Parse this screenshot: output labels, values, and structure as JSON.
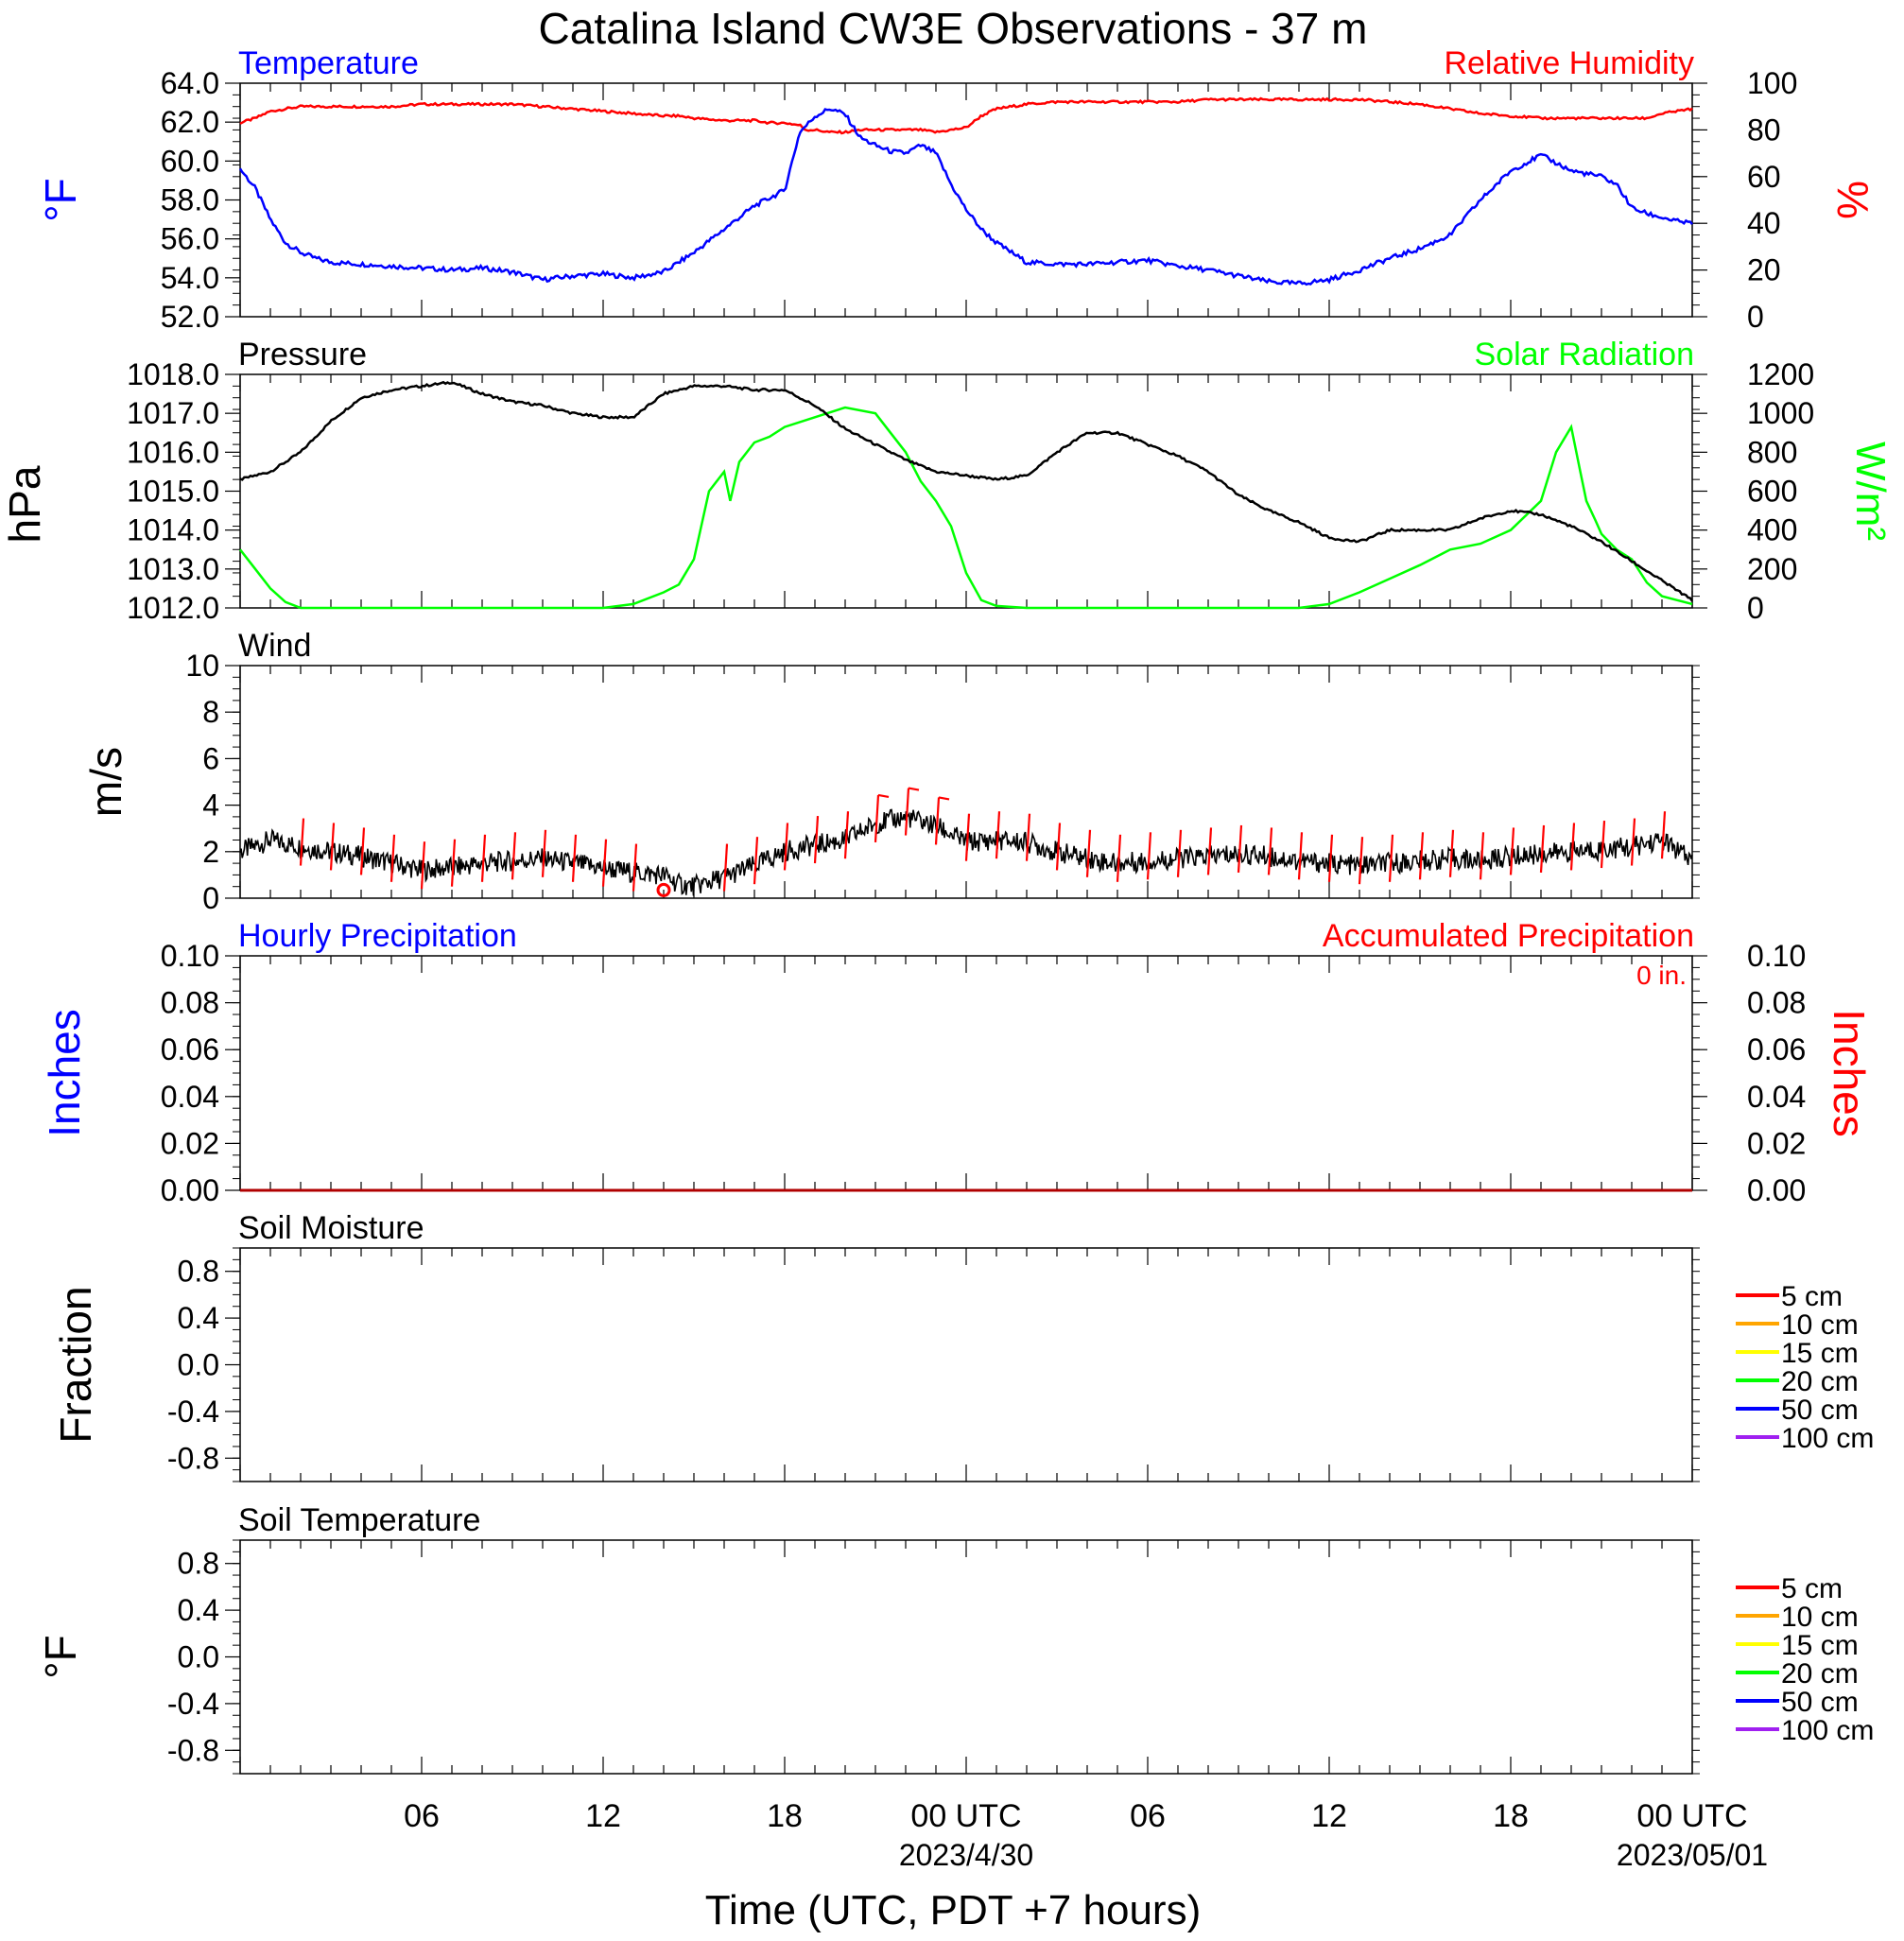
{
  "title": "Catalina Island CW3E Observations - 37 m",
  "x_axis": {
    "label": "Time (UTC, PDT +7 hours)",
    "ticks": [
      "06",
      "12",
      "18",
      "00 UTC",
      "06",
      "12",
      "18",
      "00 UTC"
    ],
    "dates": [
      "2023/4/30",
      "2023/05/01"
    ]
  },
  "colors": {
    "temperature": "#0000ff",
    "humidity": "#ff0000",
    "pressure": "#000000",
    "solar": "#00ff00",
    "wind": "#000000",
    "barbs": "#ff0000",
    "soil_depths": [
      "#ff0000",
      "#ffa500",
      "#ffff00",
      "#00ff00",
      "#0000ff",
      "#a020f0"
    ]
  },
  "chart_data": [
    {
      "type": "line",
      "title_left": "Temperature",
      "title_right": "Relative Humidity",
      "ylabel_left": "°F",
      "ylabel_right": "%",
      "ylim_left": [
        52,
        64
      ],
      "ylim_right": [
        0,
        100
      ],
      "yticks_left": [
        "64.0",
        "62.0",
        "60.0",
        "58.0",
        "56.0",
        "54.0",
        "52.0"
      ],
      "yticks_right": [
        "100",
        "80",
        "60",
        "40",
        "20",
        "0"
      ],
      "x_hours": [
        0,
        0.5,
        1,
        1.5,
        2,
        2.5,
        3,
        4,
        5,
        6,
        7,
        8,
        9,
        10,
        11,
        12,
        13,
        14,
        14.5,
        15,
        16,
        17,
        17.5,
        18,
        18.5,
        18.7,
        19,
        19.5,
        20,
        20.5,
        21,
        21.5,
        22,
        22.5,
        23,
        23.5,
        24,
        24.5,
        25,
        26,
        27,
        28,
        29,
        30,
        31,
        32,
        33,
        34,
        35,
        36,
        37,
        38,
        39,
        40,
        41,
        42,
        43,
        44,
        45,
        45.5,
        46,
        46.5,
        47,
        47.5,
        48
      ],
      "series": [
        {
          "name": "Temperature",
          "axis": "left",
          "values": [
            59.6,
            58.6,
            57.0,
            55.8,
            55.3,
            55.0,
            54.8,
            54.7,
            54.6,
            54.5,
            54.4,
            54.5,
            54.3,
            53.9,
            54.1,
            54.2,
            54.0,
            54.3,
            54.8,
            55.3,
            56.5,
            57.7,
            58.1,
            58.5,
            61.5,
            61.8,
            62.3,
            62.7,
            62.4,
            61.2,
            60.8,
            60.5,
            60.4,
            60.8,
            60.4,
            58.8,
            57.5,
            56.5,
            55.8,
            54.8,
            54.7,
            54.7,
            54.8,
            54.9,
            54.6,
            54.4,
            54.1,
            53.8,
            53.7,
            53.9,
            54.4,
            55.0,
            55.5,
            56.2,
            58.0,
            59.5,
            60.3,
            59.5,
            59.2,
            58.8,
            57.6,
            57.3,
            57.1,
            56.9,
            56.8
          ]
        },
        {
          "name": "Relative Humidity",
          "axis": "right",
          "values": [
            83,
            85,
            88,
            89,
            90,
            90,
            90,
            90,
            90,
            91,
            91,
            91,
            91,
            90,
            89,
            88,
            87,
            86,
            86,
            85,
            84,
            84,
            83,
            83,
            82,
            80,
            80,
            79,
            79,
            80,
            80,
            80,
            80,
            80,
            79,
            80,
            81,
            86,
            89,
            91,
            92,
            92,
            92,
            92,
            92,
            93,
            93,
            93,
            93,
            93,
            93,
            92,
            91,
            89,
            87,
            86,
            85,
            85,
            85,
            85,
            85,
            85,
            87,
            88,
            89
          ]
        }
      ]
    },
    {
      "type": "line",
      "title_left": "Pressure",
      "title_right": "Solar Radiation",
      "ylabel_left": "hPa",
      "ylabel_right": "W/m²",
      "ylim_left": [
        1012,
        1018
      ],
      "ylim_right": [
        0,
        1200
      ],
      "yticks_left": [
        "1018.0",
        "1017.0",
        "1016.0",
        "1015.0",
        "1014.0",
        "1013.0",
        "1012.0"
      ],
      "yticks_right": [
        "1200",
        "1000",
        "800",
        "600",
        "400",
        "200",
        "0"
      ],
      "series": [
        {
          "name": "Pressure",
          "axis": "left",
          "x_hours": [
            0,
            1,
            2,
            3,
            4,
            5,
            6,
            7,
            8,
            9,
            10,
            11,
            12,
            13,
            14,
            15,
            16,
            17,
            18,
            19,
            20,
            21,
            22,
            23,
            24,
            25,
            26,
            27,
            28,
            29,
            30,
            31,
            32,
            33,
            34,
            35,
            36,
            37,
            38,
            39,
            40,
            41,
            42,
            43,
            44,
            45,
            46,
            47,
            48
          ],
          "values": [
            1015.3,
            1015.5,
            1016.0,
            1016.8,
            1017.4,
            1017.6,
            1017.7,
            1017.8,
            1017.5,
            1017.3,
            1017.2,
            1017.0,
            1016.9,
            1016.9,
            1017.5,
            1017.7,
            1017.7,
            1017.6,
            1017.6,
            1017.2,
            1016.6,
            1016.2,
            1015.8,
            1015.5,
            1015.4,
            1015.3,
            1015.4,
            1016.0,
            1016.5,
            1016.5,
            1016.2,
            1015.9,
            1015.5,
            1014.9,
            1014.5,
            1014.2,
            1013.8,
            1013.7,
            1014.0,
            1014.0,
            1014.0,
            1014.3,
            1014.5,
            1014.4,
            1014.1,
            1013.7,
            1013.2,
            1012.7,
            1012.2
          ]
        },
        {
          "name": "Solar Radiation",
          "axis": "right",
          "x_hours": [
            0,
            0.5,
            1,
            1.5,
            2,
            12,
            13,
            14,
            14.5,
            15,
            15.5,
            16,
            16.2,
            16.5,
            17,
            17.5,
            18,
            19,
            20,
            21,
            21.5,
            22,
            22.5,
            23,
            23.5,
            24,
            24.5,
            25,
            26,
            35,
            36,
            37,
            38,
            39,
            40,
            41,
            42,
            43,
            43.5,
            44,
            44.3,
            44.5,
            44.8,
            45,
            45.5,
            46,
            46.5,
            47,
            47.5,
            48
          ],
          "values": [
            300,
            200,
            100,
            30,
            0,
            0,
            20,
            80,
            120,
            250,
            600,
            700,
            550,
            750,
            850,
            880,
            930,
            980,
            1030,
            1000,
            900,
            800,
            650,
            550,
            420,
            180,
            40,
            10,
            0,
            0,
            20,
            80,
            150,
            220,
            300,
            330,
            400,
            550,
            800,
            930,
            700,
            550,
            450,
            380,
            300,
            250,
            130,
            60,
            40,
            20
          ]
        }
      ]
    },
    {
      "type": "line",
      "title_left": "Wind",
      "ylabel_left": "m/s",
      "ylim_left": [
        0,
        10
      ],
      "yticks_left": [
        "10",
        "8",
        "6",
        "4",
        "2",
        "0"
      ],
      "x_hours": [
        0,
        1,
        2,
        3,
        4,
        5,
        6,
        7,
        8,
        9,
        10,
        11,
        12,
        13,
        14,
        14.5,
        15,
        16,
        17,
        18,
        19,
        20,
        21,
        22,
        23,
        24,
        25,
        26,
        27,
        28,
        29,
        30,
        31,
        32,
        33,
        34,
        35,
        36,
        37,
        38,
        39,
        40,
        41,
        42,
        43,
        44,
        45,
        46,
        47,
        48
      ],
      "series": [
        {
          "name": "Wind",
          "values": [
            2.0,
            2.5,
            2.2,
            2.0,
            1.8,
            1.5,
            1.2,
            1.3,
            1.5,
            1.6,
            1.7,
            1.5,
            1.3,
            1.1,
            1.0,
            0.6,
            0.5,
            0.9,
            1.4,
            2.0,
            2.3,
            2.5,
            3.2,
            3.5,
            3.1,
            2.4,
            2.5,
            2.4,
            2.0,
            1.7,
            1.5,
            1.6,
            1.7,
            1.8,
            1.9,
            1.8,
            1.6,
            1.5,
            1.4,
            1.5,
            1.6,
            1.7,
            1.6,
            1.8,
            1.9,
            2.0,
            2.1,
            2.2,
            2.5,
            1.6
          ]
        }
      ],
      "barbs_x_hours": [
        2,
        3,
        4,
        5,
        6,
        7,
        8,
        9,
        10,
        11,
        12,
        13,
        16,
        17,
        18,
        19,
        20,
        21,
        22,
        23,
        24,
        25,
        26,
        27,
        28,
        29,
        30,
        31,
        32,
        33,
        34,
        35,
        36,
        37,
        38,
        39,
        40,
        41,
        42,
        43,
        44,
        45,
        46,
        47
      ],
      "calm_marker_x_hours": 14
    },
    {
      "type": "line",
      "title_left": "Hourly Precipitation",
      "title_right": "Accumulated Precipitation",
      "annotation": "0 in.",
      "ylabel_left": "Inches",
      "ylabel_right": "Inches",
      "ylim_left": [
        0,
        0.1
      ],
      "ylim_right": [
        0,
        0.1
      ],
      "yticks_left": [
        "0.10",
        "0.08",
        "0.06",
        "0.04",
        "0.02",
        "0.00"
      ],
      "yticks_right": [
        "0.10",
        "0.08",
        "0.06",
        "0.04",
        "0.02",
        "0.00"
      ],
      "x_hours": [
        0,
        48
      ],
      "series": [
        {
          "name": "Hourly Precipitation",
          "axis": "left",
          "values": [
            0,
            0
          ]
        },
        {
          "name": "Accumulated Precipitation",
          "axis": "right",
          "values": [
            0,
            0
          ]
        }
      ]
    },
    {
      "type": "line",
      "title_left": "Soil Moisture",
      "ylabel_left": "Fraction",
      "ylim_left": [
        -1,
        1
      ],
      "yticks_left": [
        "0.8",
        "0.4",
        "0.0",
        "-0.4",
        "-0.8"
      ],
      "legend": [
        "5 cm",
        "10 cm",
        "15 cm",
        "20 cm",
        "50 cm",
        "100 cm"
      ],
      "series": []
    },
    {
      "type": "line",
      "title_left": "Soil Temperature",
      "ylabel_left": "°F",
      "ylim_left": [
        -1,
        1
      ],
      "yticks_left": [
        "0.8",
        "0.4",
        "0.0",
        "-0.4",
        "-0.8"
      ],
      "legend": [
        "5 cm",
        "10 cm",
        "15 cm",
        "20 cm",
        "50 cm",
        "100 cm"
      ],
      "series": []
    }
  ]
}
